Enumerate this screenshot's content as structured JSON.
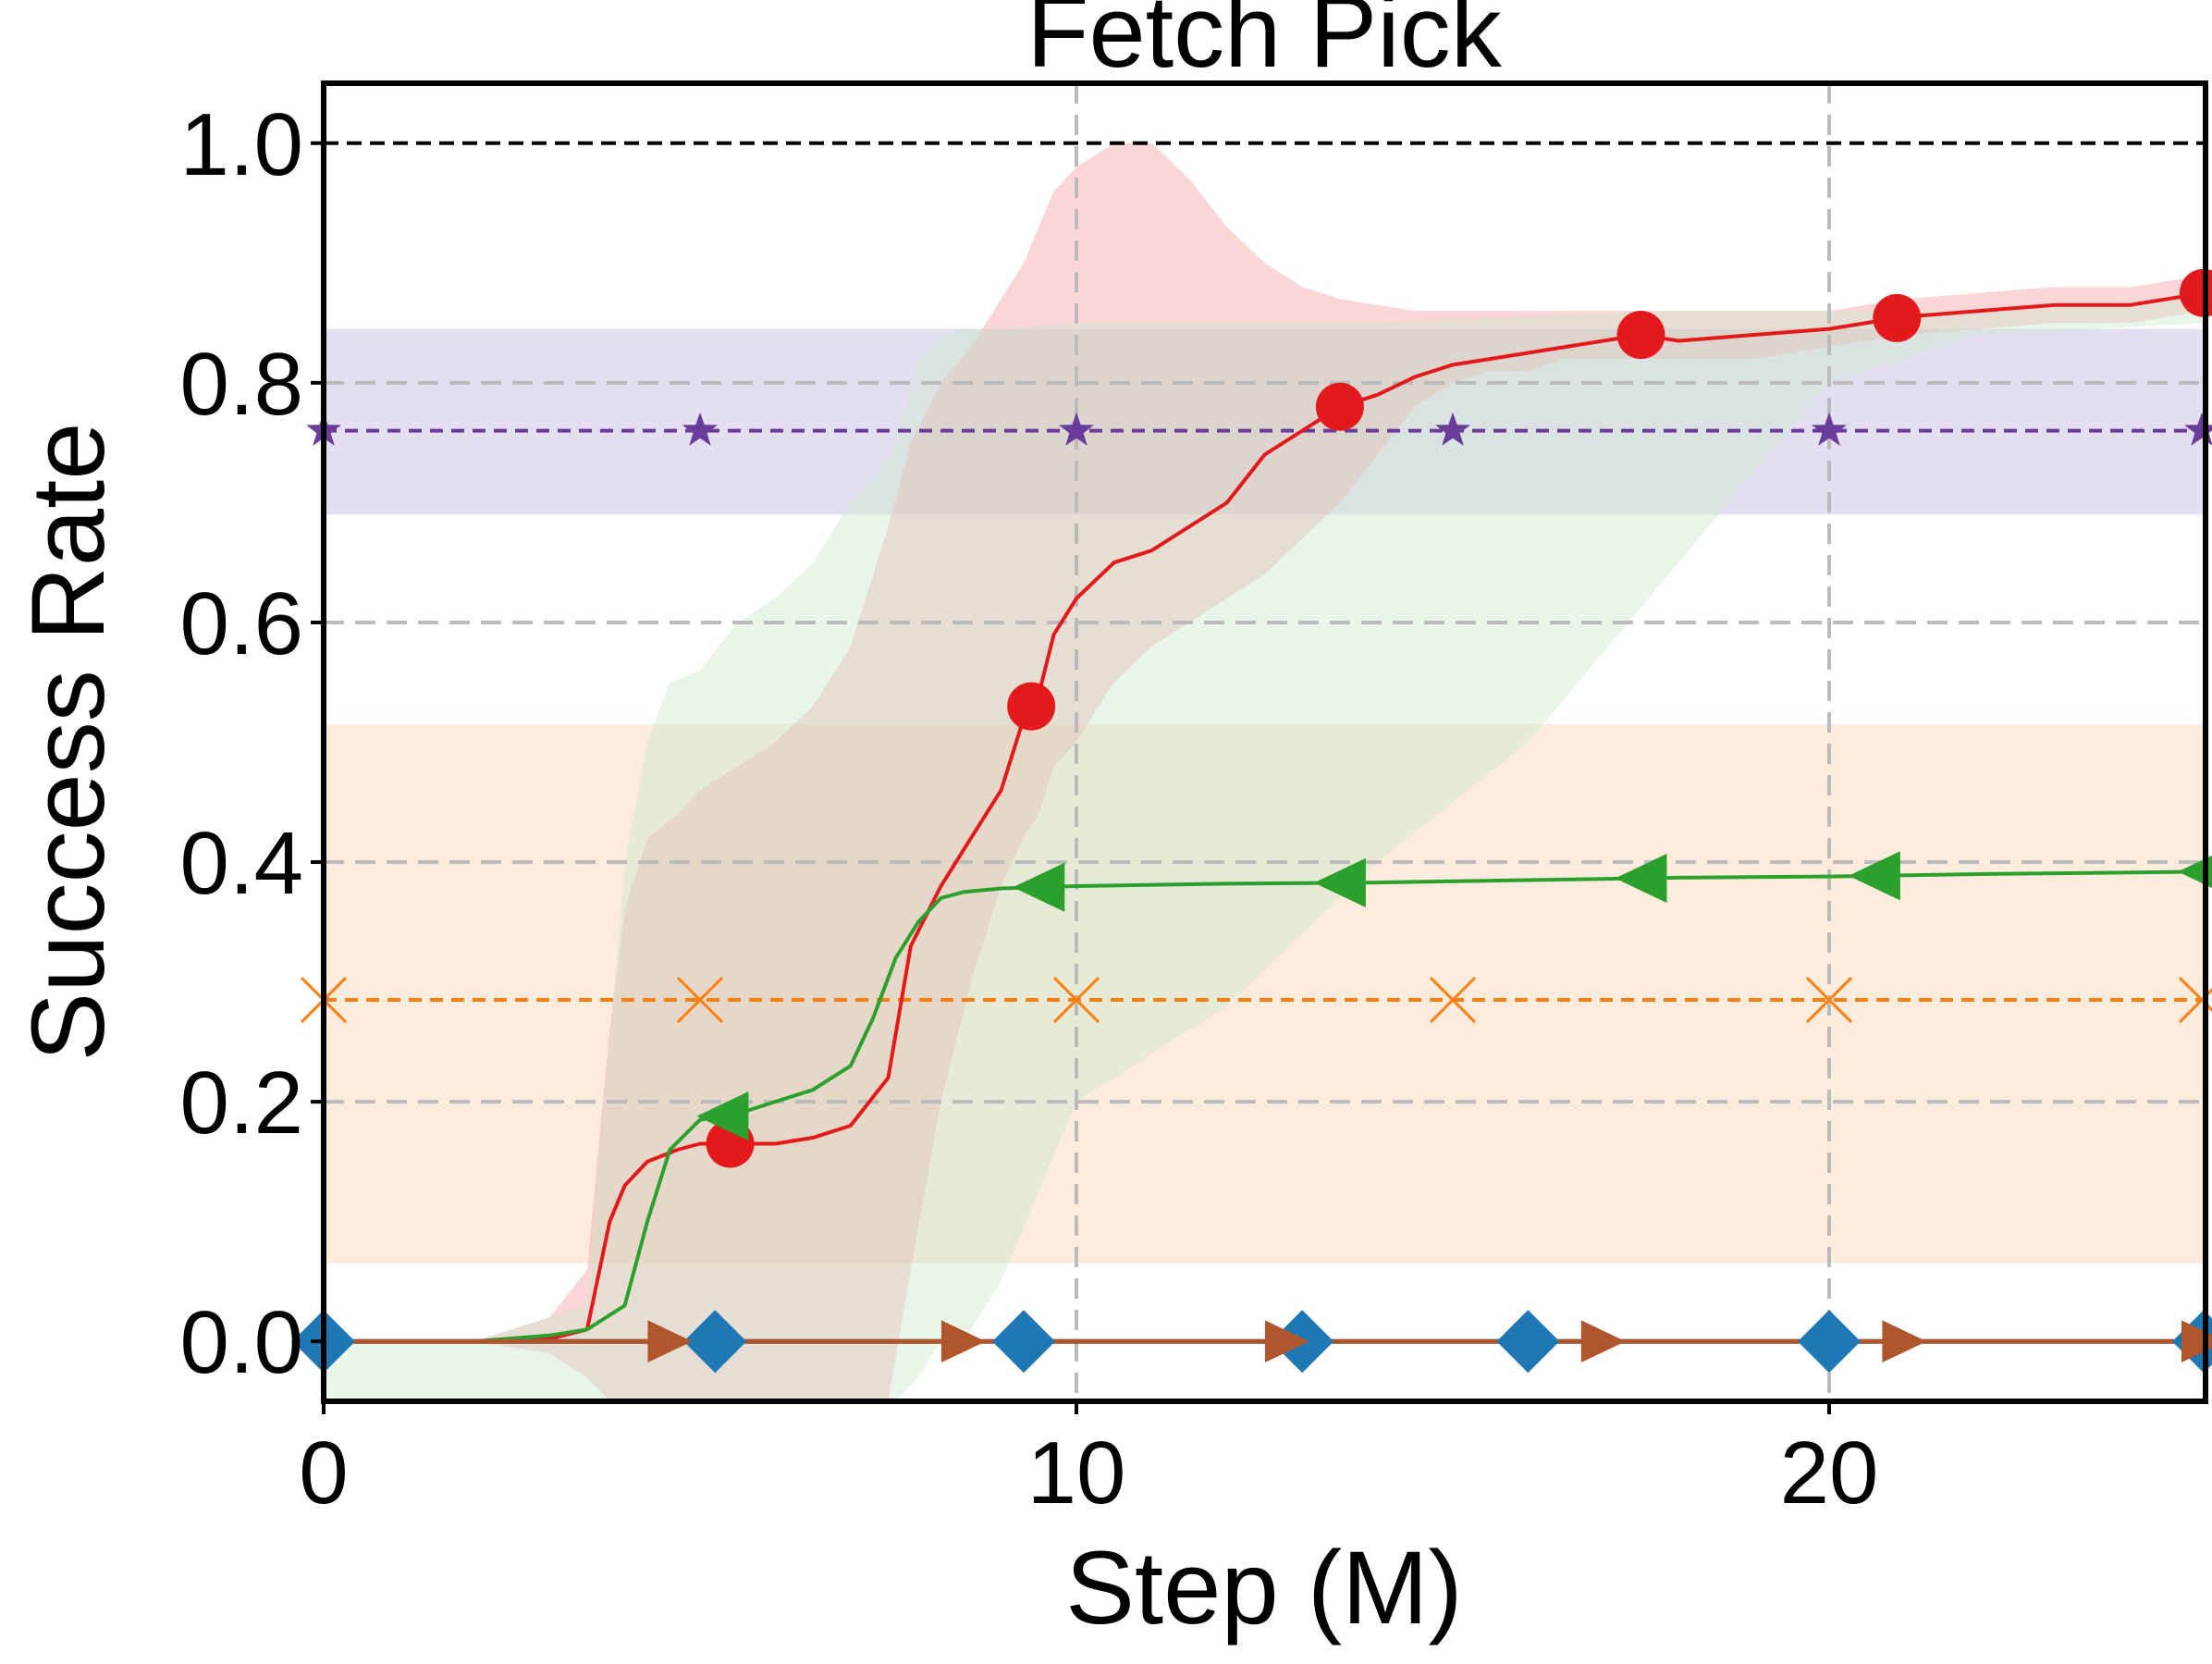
{
  "chart_data": {
    "type": "line",
    "title": "Fetch Pick",
    "xlabel": "Step (M)",
    "ylabel": "Success Rate",
    "xlim": [
      0,
      25
    ],
    "ylim": [
      -0.05,
      1.05
    ],
    "xticks": [
      0,
      10,
      20
    ],
    "xtick_labels": [
      "0",
      "10",
      "20"
    ],
    "yticks": [
      0.0,
      0.2,
      0.4,
      0.6,
      0.8,
      1.0
    ],
    "ytick_labels": [
      "0.0",
      "0.2",
      "0.4",
      "0.6",
      "0.8",
      "1.0"
    ],
    "grid": true,
    "reference_line": {
      "y": 1.0,
      "style": "dashed",
      "color": "#000000"
    },
    "constant_baselines": [
      {
        "value": 0.76,
        "band": [
          0.69,
          0.845
        ],
        "marker": "star",
        "color": "#6a3d9a",
        "band_color": "#8f80c4",
        "marker_x": [
          0,
          5,
          10,
          15,
          20,
          25
        ]
      },
      {
        "value": 0.285,
        "band": [
          0.065,
          0.515
        ],
        "marker": "x",
        "color": "#ff7f0e",
        "band_color": "#f5b27a",
        "marker_x": [
          0,
          5,
          10,
          15,
          20,
          25
        ]
      }
    ],
    "series": [
      {
        "color": "#e3191c",
        "marker": "circle",
        "band_color": "#f3a3a3",
        "x": [
          0,
          2,
          3,
          3.5,
          3.8,
          4.0,
          4.3,
          4.7,
          5.0,
          5.5,
          6.0,
          6.5,
          7.0,
          7.5,
          7.8,
          8.2,
          8.6,
          9.0,
          9.3,
          9.5,
          9.7,
          10.0,
          10.5,
          11.0,
          11.5,
          12.0,
          12.5,
          13.0,
          13.5,
          14.0,
          14.5,
          15.0,
          15.5,
          16.0,
          16.5,
          17.0,
          17.5,
          18.0,
          19.0,
          20.0,
          21.0,
          22.0,
          23.0,
          24.0,
          25.0
        ],
        "y": [
          0.0,
          0.0,
          0.002,
          0.01,
          0.1,
          0.13,
          0.15,
          0.16,
          0.165,
          0.165,
          0.165,
          0.17,
          0.18,
          0.22,
          0.33,
          0.38,
          0.42,
          0.46,
          0.52,
          0.54,
          0.59,
          0.62,
          0.65,
          0.66,
          0.68,
          0.7,
          0.74,
          0.76,
          0.78,
          0.79,
          0.805,
          0.815,
          0.82,
          0.825,
          0.83,
          0.835,
          0.84,
          0.835,
          0.84,
          0.845,
          0.855,
          0.86,
          0.865,
          0.865,
          0.875
        ],
        "band_lower": [
          0.0,
          0.0,
          -0.01,
          -0.03,
          -0.05,
          -0.05,
          -0.05,
          -0.05,
          -0.05,
          -0.05,
          -0.05,
          -0.05,
          -0.05,
          -0.05,
          0.06,
          0.2,
          0.3,
          0.38,
          0.42,
          0.44,
          0.48,
          0.5,
          0.55,
          0.58,
          0.6,
          0.62,
          0.64,
          0.67,
          0.7,
          0.74,
          0.78,
          0.8,
          0.81,
          0.81,
          0.82,
          0.82,
          0.82,
          0.82,
          0.82,
          0.83,
          0.84,
          0.845,
          0.85,
          0.85,
          0.86
        ],
        "band_upper": [
          0.0,
          0.0,
          0.02,
          0.06,
          0.26,
          0.36,
          0.42,
          0.44,
          0.46,
          0.48,
          0.5,
          0.53,
          0.58,
          0.68,
          0.75,
          0.8,
          0.83,
          0.87,
          0.9,
          0.93,
          0.96,
          0.98,
          1.0,
          1.0,
          0.97,
          0.93,
          0.9,
          0.88,
          0.87,
          0.865,
          0.86,
          0.86,
          0.86,
          0.86,
          0.86,
          0.86,
          0.86,
          0.86,
          0.86,
          0.86,
          0.87,
          0.875,
          0.88,
          0.88,
          0.89
        ]
      },
      {
        "color": "#2ca02c",
        "marker": "triangle-left",
        "band_color": "#cfe8cf",
        "x": [
          0,
          2,
          3,
          3.5,
          4.0,
          4.3,
          4.6,
          5.0,
          5.5,
          6.0,
          6.5,
          7.0,
          7.3,
          7.6,
          7.9,
          8.2,
          8.5,
          9.0,
          10.0,
          12.0,
          14.0,
          16.0,
          18.0,
          20.0,
          22.0,
          25.0
        ],
        "y": [
          0.0,
          0.0,
          0.005,
          0.01,
          0.03,
          0.1,
          0.16,
          0.185,
          0.19,
          0.2,
          0.21,
          0.23,
          0.27,
          0.32,
          0.35,
          0.37,
          0.375,
          0.378,
          0.38,
          0.382,
          0.383,
          0.385,
          0.387,
          0.388,
          0.39,
          0.392
        ],
        "band_lower": [
          -0.05,
          -0.05,
          -0.05,
          -0.05,
          -0.05,
          -0.05,
          -0.05,
          -0.05,
          -0.05,
          -0.05,
          -0.05,
          -0.05,
          -0.05,
          -0.05,
          -0.03,
          0.0,
          0.0,
          0.05,
          0.2,
          0.28,
          0.4,
          0.5,
          0.65,
          0.8,
          0.84,
          0.85
        ],
        "band_upper": [
          0.0,
          0.0,
          0.02,
          0.03,
          0.4,
          0.5,
          0.55,
          0.56,
          0.6,
          0.62,
          0.65,
          0.7,
          0.72,
          0.75,
          0.82,
          0.84,
          0.845,
          0.845,
          0.85,
          0.85,
          0.85,
          0.855,
          0.86,
          0.86,
          0.86,
          0.87
        ]
      },
      {
        "color": "#1f77b4",
        "marker": "diamond",
        "x": [
          0,
          25
        ],
        "y": [
          0.0,
          0.0
        ],
        "marker_x": [
          0,
          5.2,
          9.3,
          13.0,
          16.0,
          20.0,
          25.0
        ]
      },
      {
        "color": "#b0562c",
        "marker": "triangle-right",
        "x": [
          0,
          25
        ],
        "y": [
          0.0,
          0.0
        ],
        "marker_x": [
          4.6,
          8.5,
          12.8,
          17.0,
          21.0,
          25.0
        ]
      }
    ],
    "circle_markers_x": [
      5.4,
      9.4,
      13.5,
      17.5,
      20.9,
      25.0
    ],
    "triangle_left_markers_x": [
      5.3,
      9.5,
      13.5,
      17.5,
      20.6,
      25.0
    ]
  }
}
